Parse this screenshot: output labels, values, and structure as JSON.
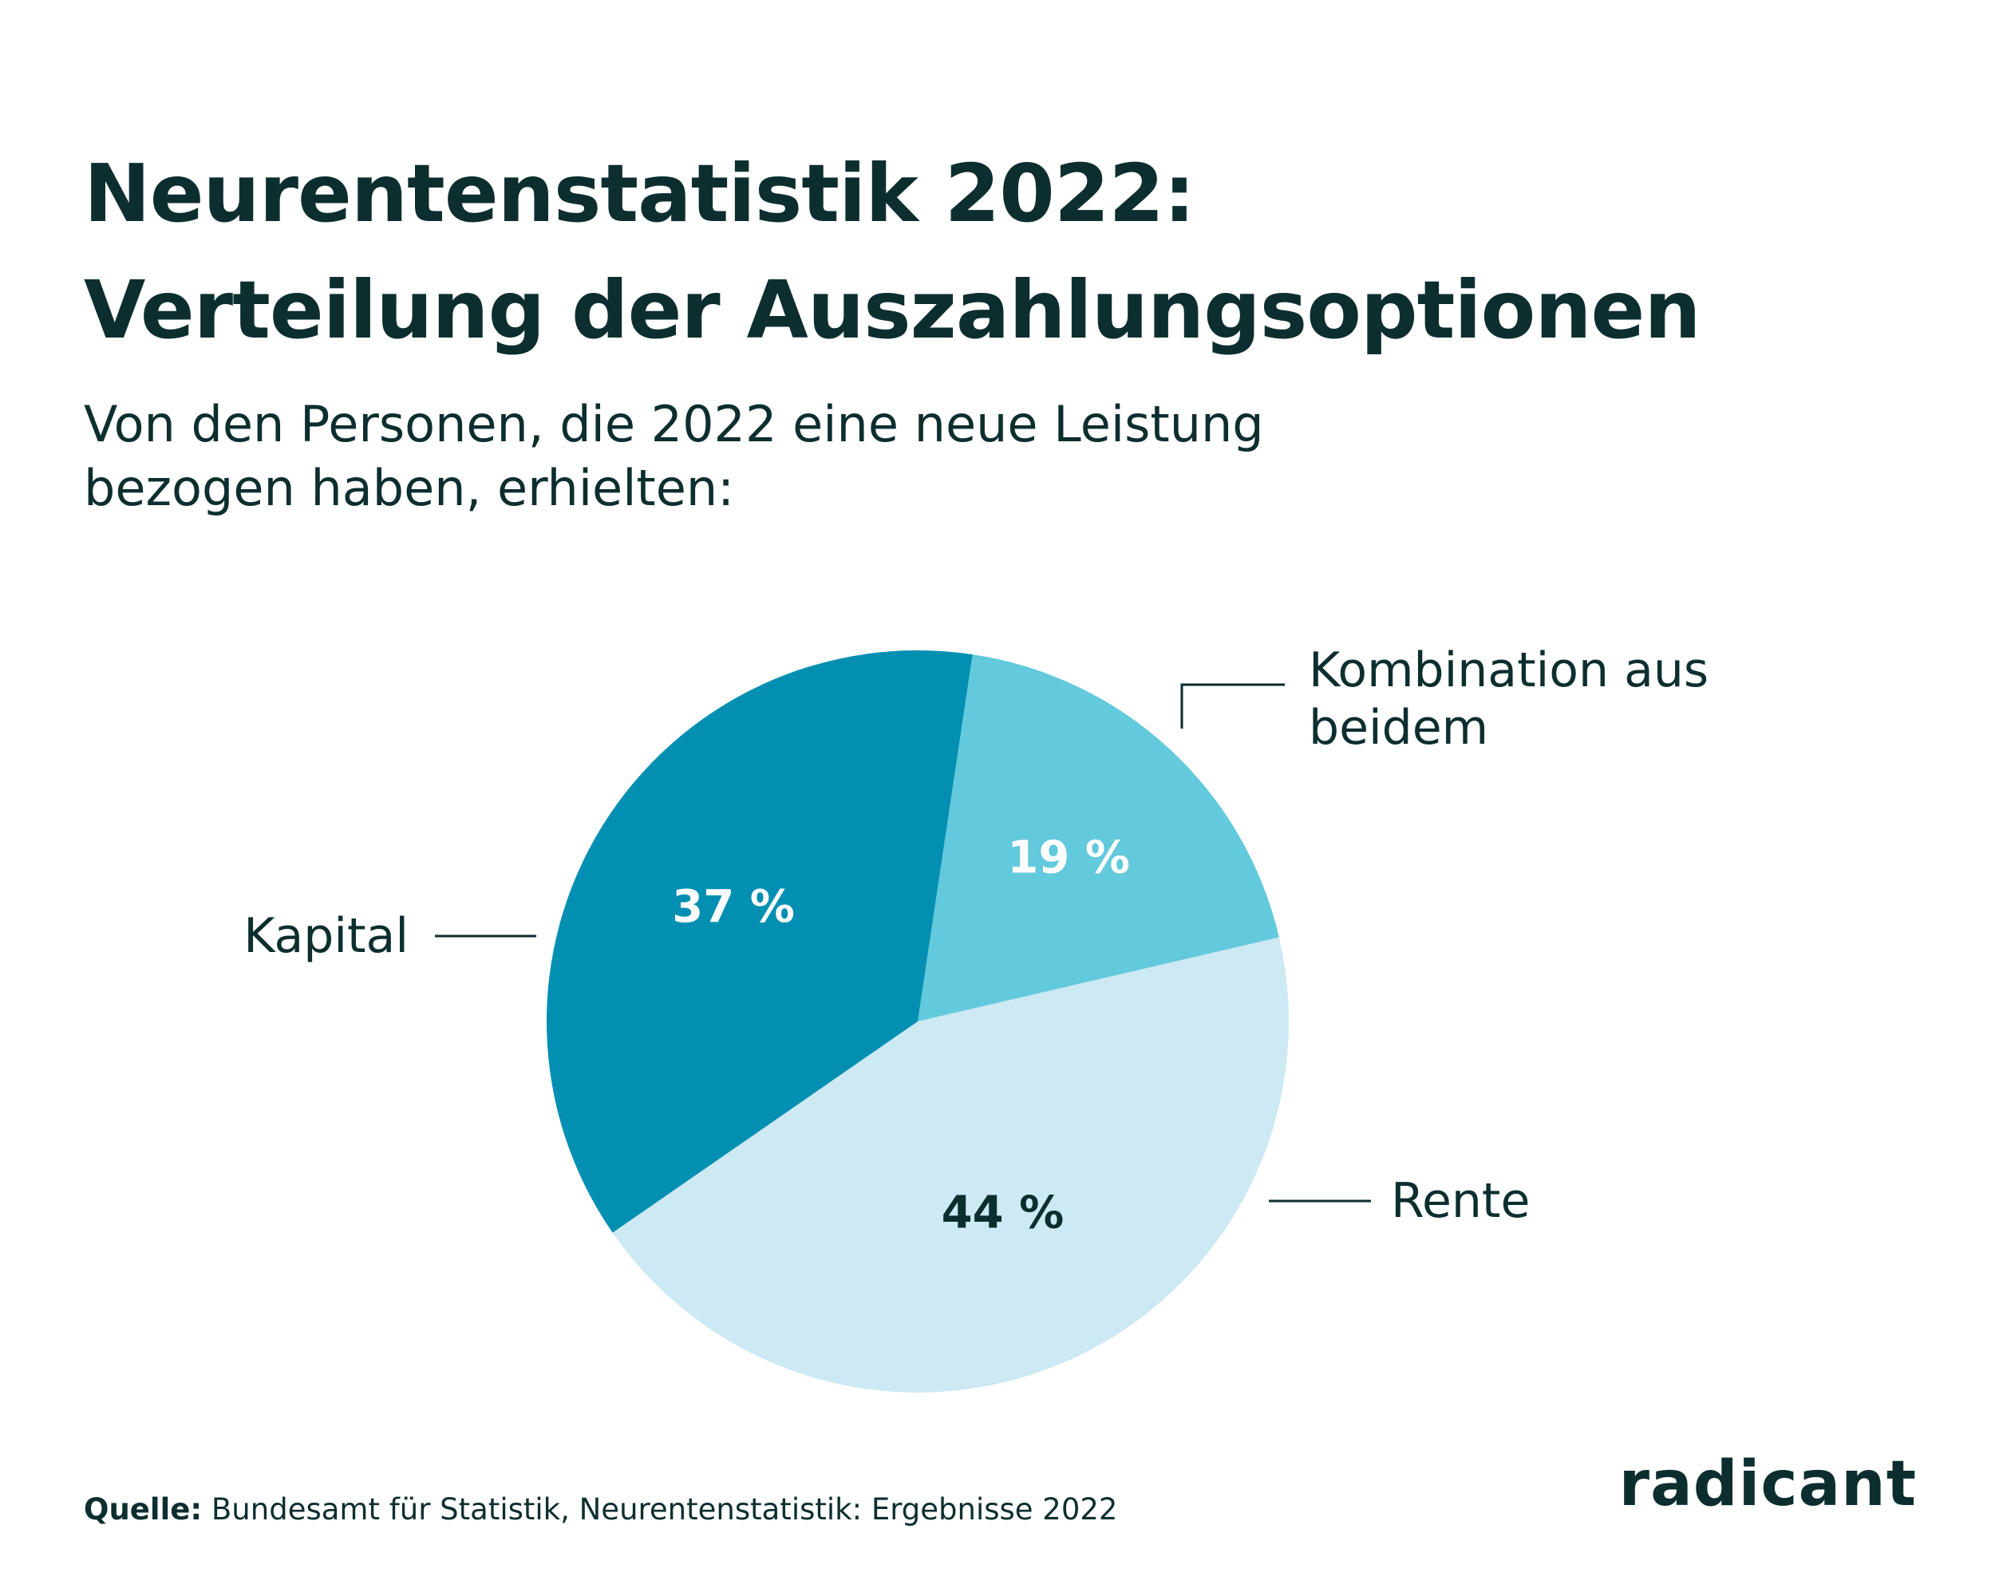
{
  "header": {
    "title_line1": "Neurentenstatistik 2022:",
    "title_line2": "Verteilung der Auszahlungsoptionen",
    "subtitle_line1": "Von den Personen, die 2022 eine neue Leistung",
    "subtitle_line2": "bezogen haben, erhielten:"
  },
  "chart_data": {
    "type": "pie",
    "title": "Neurentenstatistik 2022: Verteilung der Auszahlungsoptionen",
    "slices": [
      {
        "label": "Kombination aus beidem",
        "label_lines": [
          "Kombination aus",
          "beidem"
        ],
        "value": 19,
        "value_label": "19 %",
        "color": "#63c9dc",
        "value_color": "#ffffff"
      },
      {
        "label": "Rente",
        "label_lines": [
          "Rente"
        ],
        "value": 44,
        "value_label": "44 %",
        "color": "#cde9f3",
        "value_color": "#0d2e2e"
      },
      {
        "label": "Kapital",
        "label_lines": [
          "Kapital"
        ],
        "value": 37,
        "value_label": "37 %",
        "color": "#028fb2",
        "value_color": "#ffffff"
      }
    ],
    "label_color": "#0d2e2e"
  },
  "footer": {
    "source_label": "Quelle:",
    "source_text": " Bundesamt für Statistik, Neurentenstatistik: Ergebnisse 2022",
    "logo_text": "radicant"
  },
  "colors": {
    "text": "#0d2e2e",
    "background": "#ffffff"
  }
}
